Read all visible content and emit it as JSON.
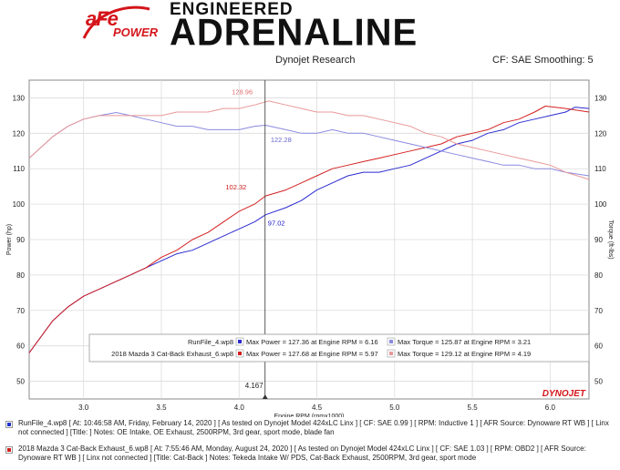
{
  "header": {
    "logo_text_main": "aFe",
    "logo_text_sub": "POWER",
    "tagline_line1": "ENGINEERED",
    "tagline_line2": "ADRENALINE",
    "research_label": "Dynojet Research",
    "cf_label": "CF: SAE Smoothing: 5"
  },
  "footer": {
    "run1": "RunFile_4.wp8 [ At: 10:46:58 AM, Friday, February 14, 2020 ] [ As tested on Dynojet Model 424xLC Linx ] [ CF: SAE 0.99 ] [ RPM: Inductive 1 ] [ AFR Source: Dynoware RT WB ] [ Linx not connected ] [Title: ] Notes: OE Intake, OE Exhaust, 2500RPM, 3rd gear, sport mode, blade fan",
    "run2": "2018 Mazda 3 Cat-Back Exhaust_6.wp8 [ At: 7:55:46 AM, Monday, August 24, 2020 ] [ As tested on Dynojet Model 424xLC Linx ] [ CF: SAE 1.03 ] [ RPM: OBD2 ] [ AFR Source: Dynoware RT WB ] [ Linx not connected ] [Title: Cat-Back ] Notes: Tekeda Intake W/ PDS, Cat-Back Exhaust, 2500RPM, 3rd gear, sport mode",
    "run1_color": "#2233cc",
    "run2_color": "#d42020"
  },
  "chart_data": {
    "type": "line",
    "xlabel": "Engine RPM (rpmx1000)",
    "ylabel_left": "Power (hp)",
    "ylabel_right": "Torque (ft-lbs)",
    "xlim": [
      2.65,
      6.25
    ],
    "ylim_left": [
      45,
      135
    ],
    "ylim_right": [
      45,
      135
    ],
    "x_ticks": [
      "3.0",
      "3.5",
      "4.0",
      "4.5",
      "5.0",
      "5.5",
      "6.0"
    ],
    "y_ticks_left": [
      "50",
      "60",
      "70",
      "80",
      "90",
      "100",
      "110",
      "120",
      "130"
    ],
    "y_ticks_right": [
      "50",
      "60",
      "70",
      "80",
      "90",
      "100",
      "110",
      "120",
      "130"
    ],
    "grid": true,
    "cursor": {
      "x": 4.167,
      "label": "4.167"
    },
    "annotations": [
      {
        "text": "128.96",
        "x": 4.02,
        "y": 131.0,
        "color": "#e07070"
      },
      {
        "text": "122.28",
        "x": 4.27,
        "y": 117.5,
        "color": "#6666cc"
      },
      {
        "text": "102.32",
        "x": 3.98,
        "y": 104.2,
        "color": "#cc1a1a"
      },
      {
        "text": "97.02",
        "x": 4.24,
        "y": 94.0,
        "color": "#1a1acc"
      }
    ],
    "legend": {
      "placement": "bottom-center",
      "rows": [
        {
          "run": "RunFile_4.wp8",
          "power_text": "Max Power = 127.36 at Engine RPM = 6.16",
          "torque_text": "Max Torque = 125.87 at Engine RPM = 3.21"
        },
        {
          "run": "2018 Mazda 3 Cat-Back Exhaust_6.wp8",
          "power_text": "Max Power = 127.68 at Engine RPM = 5.97",
          "torque_text": "Max Torque = 129.12 at Engine RPM = 4.19"
        }
      ]
    },
    "series": [
      {
        "name": "RunFile_4.wp8 Power",
        "color": "#2b2bd0",
        "axis": "left",
        "x": [
          2.65,
          2.8,
          2.9,
          3.0,
          3.1,
          3.2,
          3.3,
          3.4,
          3.5,
          3.6,
          3.7,
          3.8,
          3.9,
          4.0,
          4.1,
          4.17,
          4.3,
          4.4,
          4.5,
          4.6,
          4.7,
          4.8,
          4.9,
          5.0,
          5.1,
          5.2,
          5.3,
          5.4,
          5.5,
          5.6,
          5.7,
          5.8,
          5.9,
          6.0,
          6.1,
          6.16,
          6.25
        ],
        "y": [
          58,
          67,
          71,
          74,
          76,
          78,
          80,
          82,
          84,
          86,
          87,
          89,
          91,
          93,
          95,
          97,
          99,
          101,
          104,
          106,
          108,
          109,
          109,
          110,
          111,
          113,
          115,
          117,
          118,
          120,
          121,
          123,
          124,
          125,
          126,
          127.36,
          127
        ]
      },
      {
        "name": "2018 Mazda 3 Cat-Back Exhaust_6.wp8 Power",
        "color": "#d42020",
        "axis": "left",
        "x": [
          2.65,
          2.8,
          2.9,
          3.0,
          3.1,
          3.2,
          3.3,
          3.4,
          3.5,
          3.6,
          3.7,
          3.8,
          3.9,
          4.0,
          4.1,
          4.17,
          4.3,
          4.4,
          4.5,
          4.6,
          4.7,
          4.8,
          4.9,
          5.0,
          5.1,
          5.2,
          5.3,
          5.4,
          5.5,
          5.6,
          5.7,
          5.8,
          5.9,
          5.97,
          6.1,
          6.25
        ],
        "y": [
          58,
          67,
          71,
          74,
          76,
          78,
          80,
          82,
          85,
          87,
          90,
          92,
          95,
          98,
          100,
          102.32,
          104,
          106,
          108,
          110,
          111,
          112,
          113,
          114,
          115,
          116,
          117,
          119,
          120,
          121,
          123,
          124,
          126,
          127.68,
          127,
          126
        ]
      },
      {
        "name": "RunFile_4.wp8 Torque",
        "color": "#8a8ae0",
        "axis": "right",
        "x": [
          2.65,
          2.8,
          2.9,
          3.0,
          3.1,
          3.21,
          3.3,
          3.4,
          3.5,
          3.6,
          3.7,
          3.8,
          3.9,
          4.0,
          4.1,
          4.17,
          4.3,
          4.4,
          4.5,
          4.6,
          4.7,
          4.8,
          4.9,
          5.0,
          5.1,
          5.2,
          5.3,
          5.4,
          5.5,
          5.6,
          5.7,
          5.8,
          5.9,
          6.0,
          6.1,
          6.25
        ],
        "y": [
          113,
          119,
          122,
          124,
          125,
          125.87,
          125,
          124,
          123,
          122,
          122,
          121,
          121,
          121,
          122,
          122.28,
          121,
          120,
          120,
          121,
          120,
          120,
          119,
          118,
          117,
          116,
          115,
          114,
          113,
          112,
          111,
          111,
          110,
          110,
          109,
          108
        ]
      },
      {
        "name": "2018 Mazda 3 Cat-Back Exhaust_6.wp8 Torque",
        "color": "#e89898",
        "axis": "right",
        "x": [
          2.65,
          2.8,
          2.9,
          3.0,
          3.1,
          3.2,
          3.3,
          3.4,
          3.5,
          3.6,
          3.7,
          3.8,
          3.9,
          4.0,
          4.1,
          4.19,
          4.3,
          4.4,
          4.5,
          4.6,
          4.7,
          4.8,
          4.9,
          5.0,
          5.1,
          5.2,
          5.3,
          5.4,
          5.5,
          5.6,
          5.7,
          5.8,
          5.9,
          6.0,
          6.1,
          6.25
        ],
        "y": [
          113,
          119,
          122,
          124,
          125,
          125,
          125,
          125,
          125,
          126,
          126,
          126,
          127,
          127,
          128,
          129.12,
          128,
          127,
          126,
          126,
          125,
          125,
          124,
          123,
          122,
          120,
          119,
          117,
          116,
          115,
          114,
          113,
          112,
          111,
          109,
          107
        ]
      }
    ]
  }
}
